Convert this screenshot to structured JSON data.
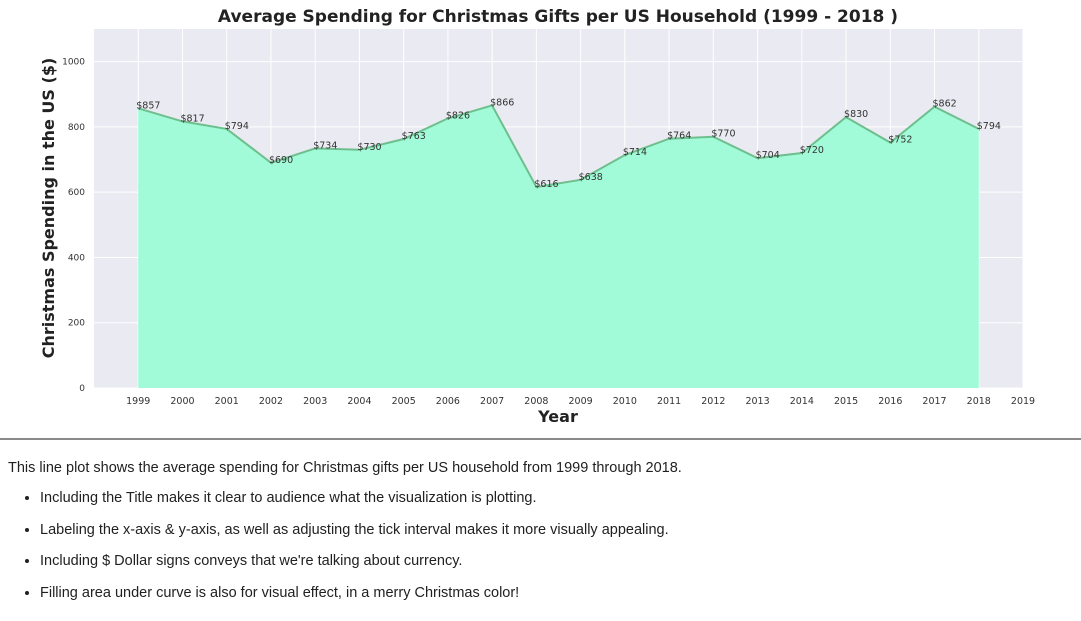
{
  "chart_data": {
    "type": "area",
    "title": "Average Spending for Christmas Gifts per US Household (1999 - 2018 )",
    "xlabel": "Year",
    "ylabel": "Christmas Spending in the US ($)",
    "x": [
      1999,
      2000,
      2001,
      2002,
      2003,
      2004,
      2005,
      2006,
      2007,
      2008,
      2009,
      2010,
      2011,
      2012,
      2013,
      2014,
      2015,
      2016,
      2017,
      2018
    ],
    "series": [
      {
        "values": [
          857,
          817,
          794,
          690,
          734,
          730,
          763,
          826,
          866,
          616,
          638,
          714,
          764,
          770,
          704,
          720,
          830,
          752,
          862,
          794
        ]
      }
    ],
    "data_labels": [
      "$857",
      "$817",
      "$794",
      "$690",
      "$734",
      "$730",
      "$763",
      "$826",
      "$866",
      "$616",
      "$638",
      "$714",
      "$764",
      "$770",
      "$704",
      "$720",
      "$830",
      "$752",
      "$862",
      "$794"
    ],
    "xticks": [
      "1999",
      "2000",
      "2001",
      "2002",
      "2003",
      "2004",
      "2005",
      "2006",
      "2007",
      "2008",
      "2009",
      "2010",
      "2011",
      "2012",
      "2013",
      "2014",
      "2015",
      "2016",
      "2017",
      "2018",
      "2019"
    ],
    "yticks": [
      "0",
      "200",
      "400",
      "600",
      "800",
      "1000"
    ],
    "xlim": [
      1998,
      2019
    ],
    "ylim": [
      0,
      1100
    ],
    "grid": true,
    "fill_color": "#a2fbd8",
    "line_color": "#6dbf8e",
    "background_color": "#eaeaf2"
  },
  "notes": {
    "intro": "This line plot shows the average spending for Christmas gifts per US household from 1999 through 2018.",
    "bullets": [
      "Including the Title makes it clear to audience what the visualization is plotting.",
      "Labeling the x-axis & y-axis, as well as adjusting the tick interval makes it more visually appealing.",
      "Including $ Dollar signs conveys that we're talking about currency.",
      "Filling area under curve is also for visual effect, in a merry Christmas color!"
    ]
  }
}
